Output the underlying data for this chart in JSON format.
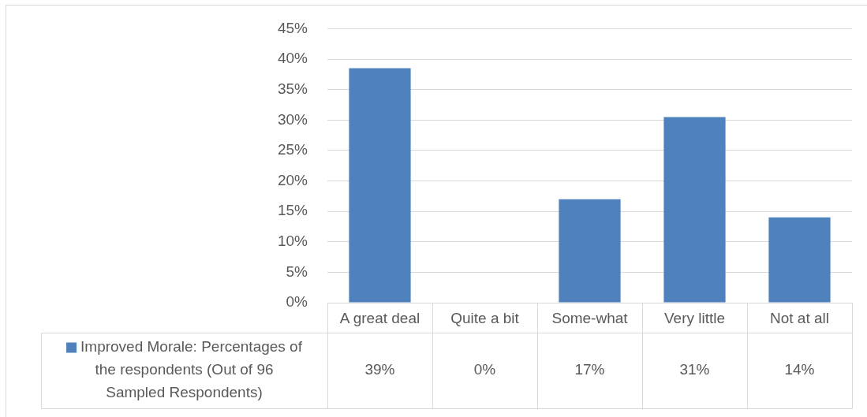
{
  "chart_data": {
    "type": "bar",
    "categories": [
      "A great deal",
      "Quite a bit",
      "Some-what",
      "Very little",
      "Not at all"
    ],
    "series": [
      {
        "name": "Improved Morale: Percentages of the respondents (Out of 96 Sampled Respondents)",
        "color": "#4f81bd",
        "values": [
          38.5,
          0,
          17,
          30.5,
          14
        ],
        "value_labels": [
          "39%",
          "0%",
          "17%",
          "31%",
          "14%"
        ]
      }
    ],
    "ylim": [
      0,
      45
    ],
    "yticks": [
      {
        "value": 0,
        "label": "0%"
      },
      {
        "value": 5,
        "label": "5%"
      },
      {
        "value": 10,
        "label": "10%"
      },
      {
        "value": 15,
        "label": "15%"
      },
      {
        "value": 20,
        "label": "20%"
      },
      {
        "value": 25,
        "label": "25%"
      },
      {
        "value": 30,
        "label": "30%"
      },
      {
        "value": 35,
        "label": "35%"
      },
      {
        "value": 40,
        "label": "40%"
      },
      {
        "value": 45,
        "label": "45%"
      }
    ],
    "grid": "y",
    "legend": "bottom left"
  }
}
